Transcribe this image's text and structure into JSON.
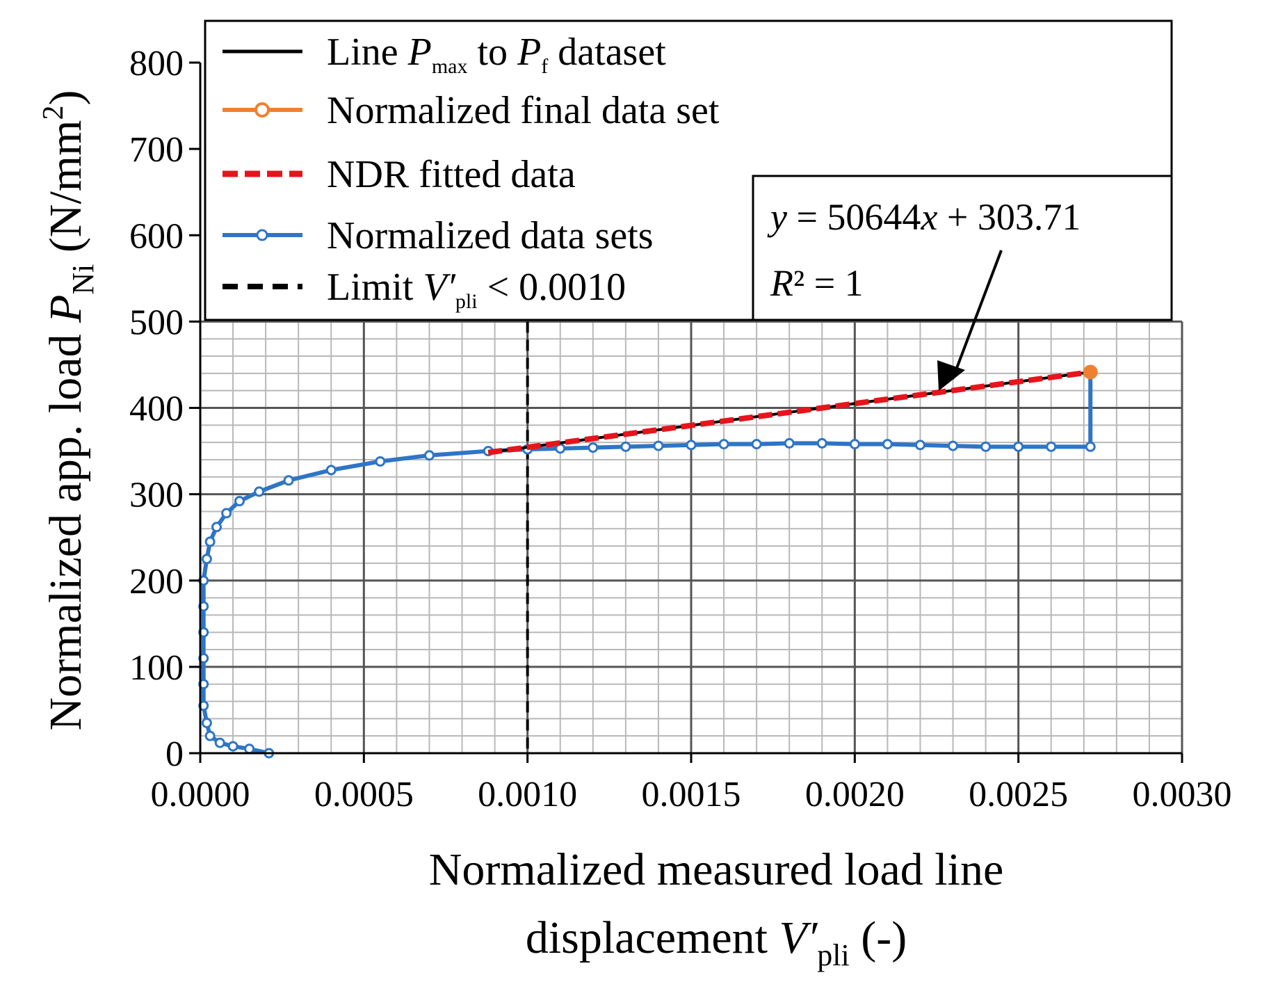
{
  "chart_data": {
    "type": "scatter",
    "title": "",
    "xlabel_line1": "Normalized measured load line",
    "xlabel_line2_prefix": "displacement ",
    "xlabel_symbol": "V′",
    "xlabel_subscript": "pli",
    "xlabel_suffix": "  (-)",
    "ylabel_prefix": "Normalized app. load ",
    "ylabel_symbol": "P",
    "ylabel_subscript": "Ni",
    "ylabel_units_open": " (N/mm",
    "ylabel_units_sup": "2",
    "ylabel_units_close": ")",
    "xlim": [
      0,
      0.003
    ],
    "ylim": [
      0,
      800
    ],
    "plot_region_ylim": [
      0,
      500
    ],
    "grid": true,
    "x_ticks": [
      "0.0000",
      "0.0005",
      "0.0010",
      "0.0015",
      "0.0020",
      "0.0025",
      "0.0030"
    ],
    "y_ticks": [
      "0",
      "100",
      "200",
      "300",
      "400",
      "500",
      "600",
      "700",
      "800"
    ],
    "legend": {
      "placement": "top",
      "entries": [
        {
          "id": "line-pmax-pf",
          "label_pre": "Line ",
          "sym1": "P",
          "sub1": "max",
          "mid": " to ",
          "sym2": "P",
          "sub2": "f",
          "label_post": " dataset",
          "color": "#000000",
          "style": "solid"
        },
        {
          "id": "final",
          "label": "Normalized final data set",
          "color": "#f08030",
          "style": "solid-marker"
        },
        {
          "id": "ndr",
          "label": "NDR fitted data",
          "color": "#e8141c",
          "style": "dashed"
        },
        {
          "id": "datasets",
          "label": "Normalized data sets",
          "color": "#2e75c6",
          "style": "solid-marker"
        },
        {
          "id": "limit",
          "label_pre": "Limit ",
          "sym1": "V′",
          "sub1": "pli",
          "label_post": " < 0.0010",
          "color": "#000000",
          "style": "dashed"
        }
      ]
    },
    "annotation": {
      "eq_y": "y",
      "eq_mid": " = 50644",
      "eq_x": "x",
      "eq_end": " + 303.71",
      "r2_sym": "R",
      "r2_rest": "² = 1",
      "slope": 50644,
      "intercept": 303.71,
      "r_squared": 1,
      "arrow_target": {
        "x": 0.00225,
        "y": 418
      }
    },
    "limit_line_x": 0.001,
    "series": [
      {
        "name": "Line Pmax to Pf dataset",
        "color": "#000000",
        "points": [
          [
            0.00088,
            348.3
          ],
          [
            0.00272,
            441.5
          ]
        ]
      },
      {
        "name": "NDR fitted data",
        "color": "#e8141c",
        "points": [
          [
            0.00088,
            348.3
          ],
          [
            0.00272,
            441.5
          ]
        ]
      },
      {
        "name": "Normalized final data set",
        "color": "#f08030",
        "points": [
          [
            0.00272,
            441.5
          ]
        ]
      },
      {
        "name": "Normalized data sets",
        "color": "#2e75c6",
        "points": [
          [
            0.00021,
            0
          ],
          [
            0.00015,
            5
          ],
          [
            0.0001,
            8
          ],
          [
            6e-05,
            12
          ],
          [
            3e-05,
            20
          ],
          [
            2e-05,
            35
          ],
          [
            1e-05,
            55
          ],
          [
            1e-05,
            80
          ],
          [
            1e-05,
            110
          ],
          [
            1e-05,
            140
          ],
          [
            1e-05,
            170
          ],
          [
            1e-05,
            200
          ],
          [
            2e-05,
            225
          ],
          [
            3e-05,
            245
          ],
          [
            5e-05,
            262
          ],
          [
            8e-05,
            278
          ],
          [
            0.00012,
            292
          ],
          [
            0.00018,
            303
          ],
          [
            0.00027,
            316
          ],
          [
            0.0004,
            328
          ],
          [
            0.00055,
            338
          ],
          [
            0.0007,
            345
          ],
          [
            0.00088,
            350
          ],
          [
            0.001,
            352
          ],
          [
            0.0011,
            353
          ],
          [
            0.0012,
            354
          ],
          [
            0.0013,
            355
          ],
          [
            0.0014,
            356
          ],
          [
            0.0015,
            357
          ],
          [
            0.0016,
            358
          ],
          [
            0.0017,
            358
          ],
          [
            0.0018,
            359
          ],
          [
            0.0019,
            359
          ],
          [
            0.002,
            358
          ],
          [
            0.0021,
            358
          ],
          [
            0.0022,
            357
          ],
          [
            0.0023,
            356
          ],
          [
            0.0024,
            355
          ],
          [
            0.0025,
            355
          ],
          [
            0.0026,
            355
          ],
          [
            0.00272,
            355
          ],
          [
            0.00272,
            441.5
          ]
        ]
      }
    ]
  }
}
